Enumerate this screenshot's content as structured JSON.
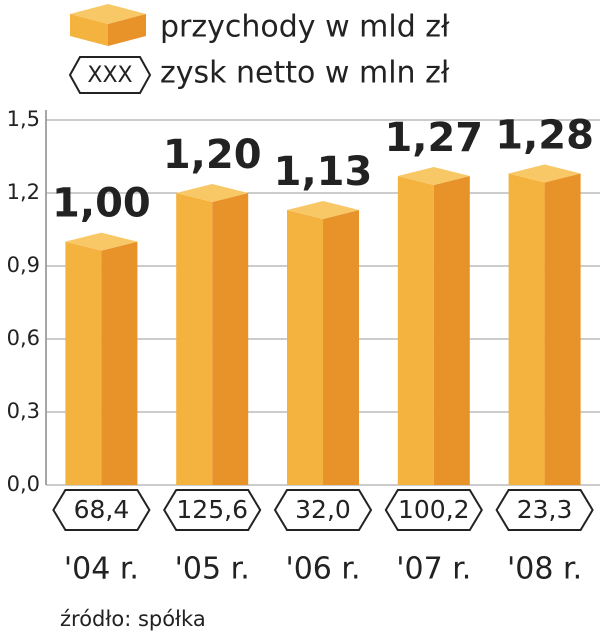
{
  "chart_data": {
    "type": "bar3d",
    "categories": [
      "'04 r.",
      "'05 r.",
      "'06 r.",
      "'07 r.",
      "'08 r."
    ],
    "series": [
      {
        "name": "przychody w mld zł",
        "color": "#f4b23e",
        "values": [
          1.0,
          1.2,
          1.13,
          1.27,
          1.28
        ],
        "value_labels": [
          "1,00",
          "1,20",
          "1,13",
          "1,27",
          "1,28"
        ]
      },
      {
        "name": "zysk netto w mln zł",
        "values": [
          68.4,
          125.6,
          32.0,
          100.2,
          23.3
        ],
        "value_labels": [
          "68,4",
          "125,6",
          "32,0",
          "100,2",
          "23,3"
        ]
      }
    ],
    "legend_symbol_text": "XXX",
    "ylim": [
      0,
      1.5
    ],
    "yticks": [
      {
        "value": 0,
        "label": "0,0"
      },
      {
        "value": 0.3,
        "label": "0,3"
      },
      {
        "value": 0.6,
        "label": "0,6"
      },
      {
        "value": 0.9,
        "label": "0,9"
      },
      {
        "value": 1.2,
        "label": "1,2"
      },
      {
        "value": 1.5,
        "label": "1,5"
      }
    ],
    "grid": true,
    "source": "źródło: spółka"
  }
}
